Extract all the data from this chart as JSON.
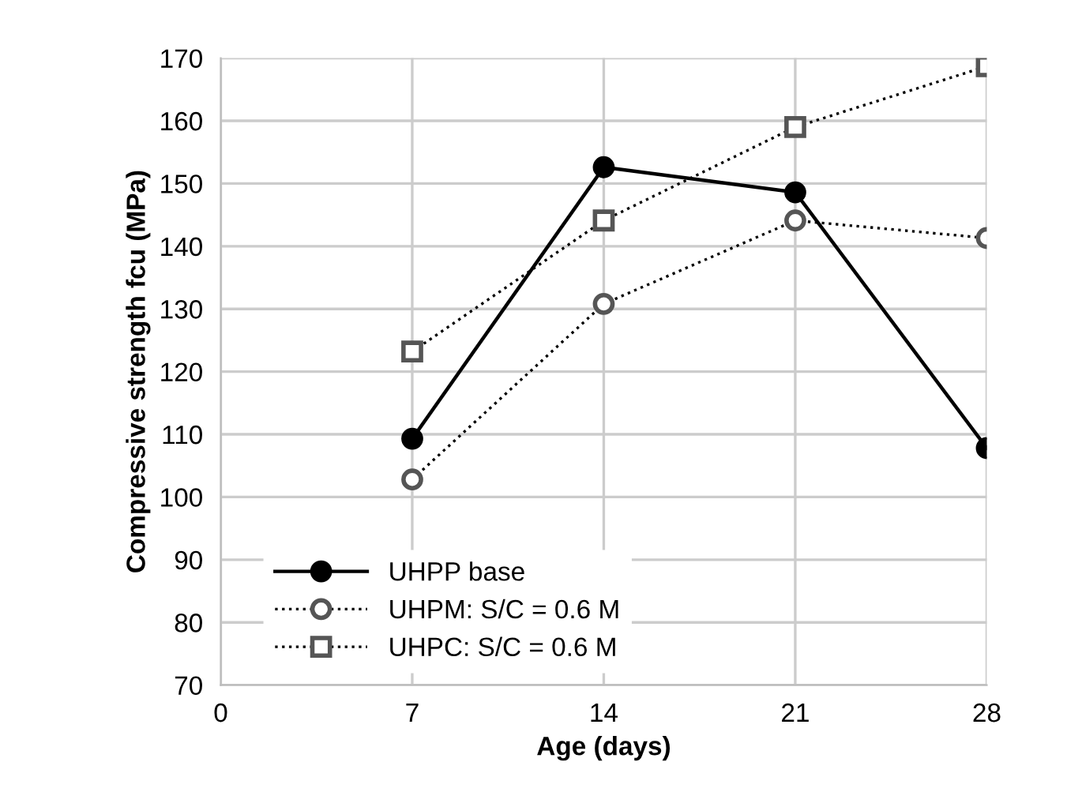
{
  "chart_data": {
    "type": "line",
    "xlabel": "Age (days)",
    "ylabel": "Compressive strength fcu (MPa)",
    "x": [
      7,
      14,
      21,
      28
    ],
    "series": [
      {
        "name": "UHPP base",
        "color": "#000000",
        "marker": "circle",
        "line_style": "solid",
        "values": [
          109.3,
          152.6,
          148.6,
          107.8
        ]
      },
      {
        "name": "UHPM: S/C = 0.6 M",
        "color": "#000000",
        "marker": "circle",
        "line_style": "dotted",
        "values": [
          102.8,
          130.8,
          144.1,
          141.3
        ]
      },
      {
        "name": "UHPC: S/C = 0.6 M",
        "color": "#000000",
        "marker": "square",
        "line_style": "dotted",
        "values": [
          123.2,
          144.1,
          159.0,
          168.7
        ]
      }
    ],
    "xlim": [
      0,
      28
    ],
    "xticks": [
      0,
      7,
      14,
      21,
      28
    ],
    "ylim": [
      70,
      170
    ],
    "yticks": [
      70,
      80,
      90,
      100,
      110,
      120,
      130,
      140,
      150,
      160,
      170
    ],
    "grid": true,
    "legend": "bottom left"
  }
}
